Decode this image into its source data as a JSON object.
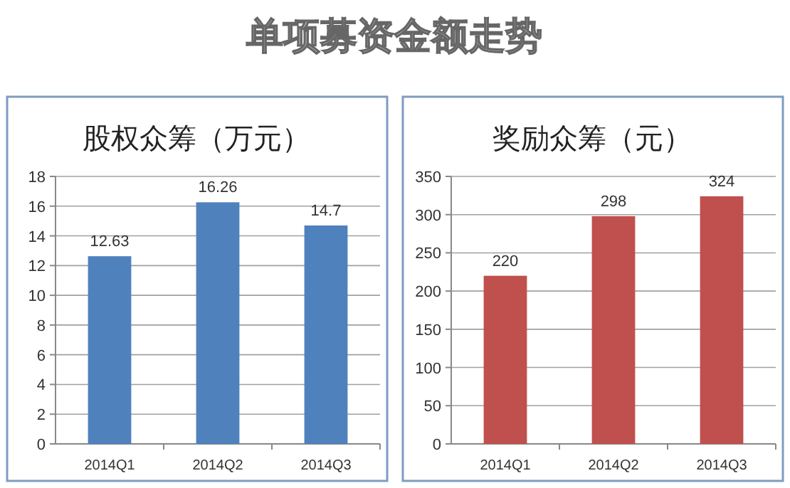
{
  "chart_data": [
    {
      "type": "other",
      "title": "单项募资金额走势"
    },
    {
      "type": "bar",
      "title": "股权众筹（万元）",
      "categories": [
        "2014Q1",
        "2014Q2",
        "2014Q3"
      ],
      "values": [
        12.63,
        16.26,
        14.7
      ],
      "color": "#4f81bd",
      "ylim": [
        0,
        18
      ],
      "yticks": [
        0,
        2,
        4,
        6,
        8,
        10,
        12,
        14,
        16,
        18
      ],
      "grid": "y",
      "data_labels": true
    },
    {
      "type": "bar",
      "title": "奖励众筹（元）",
      "categories": [
        "2014Q1",
        "2014Q2",
        "2014Q3"
      ],
      "values": [
        220,
        298,
        324
      ],
      "color": "#c0504d",
      "ylim": [
        0,
        350
      ],
      "yticks": [
        0,
        50,
        100,
        150,
        200,
        250,
        300,
        350
      ],
      "grid": "y",
      "data_labels": true
    }
  ]
}
